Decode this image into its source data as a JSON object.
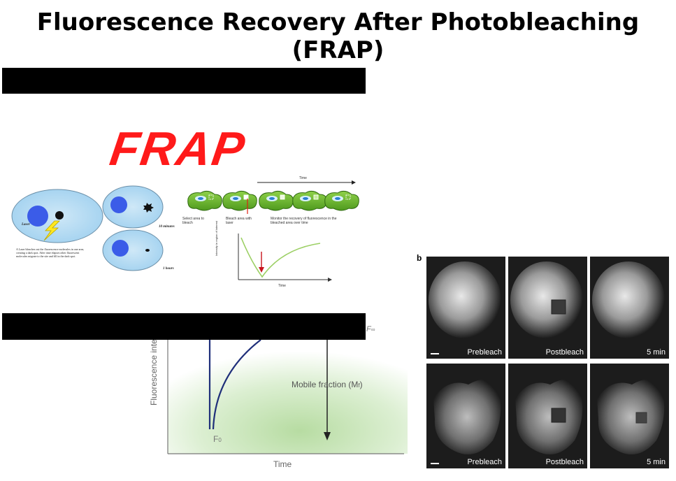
{
  "title": "Fluorescence Recovery After Photobleaching (FRAP)",
  "frap_panel": {
    "headline": "FRAP",
    "laser_label": "Laser",
    "ten_min_label": "10 minutes",
    "one_hour_label": "1 hours",
    "caption": "A Laser bleaches out the fluorescence molecules in one area, creating a dark spot. After time elapses other fluorescent molecules migrate to the site and fill in the dark spot.",
    "time_label": "Time",
    "steps": [
      "Select area to bleach",
      "Bleach area with laser",
      "Monitor the recovery of fluorescence in the bleached area over time"
    ],
    "yaxis_label": "Intensity in region of interest",
    "graph_time_label": "Time"
  },
  "recovery_graph": {
    "ylabel": "Fluorescence inte",
    "xlabel": "Time",
    "f_inf_label": "F",
    "f_inf_sub": "∞",
    "f0_label": "F",
    "f0_sub": "0",
    "mobile_label": "Mobile fraction (M",
    "mobile_sub": "f",
    "mobile_close": ")"
  },
  "micro_panel": {
    "panel_letter": "b",
    "row1": [
      "Prebleach",
      "Postbleach",
      "5 min"
    ],
    "row2": [
      "Prebleach",
      "Postbleach",
      "5 min"
    ]
  }
}
